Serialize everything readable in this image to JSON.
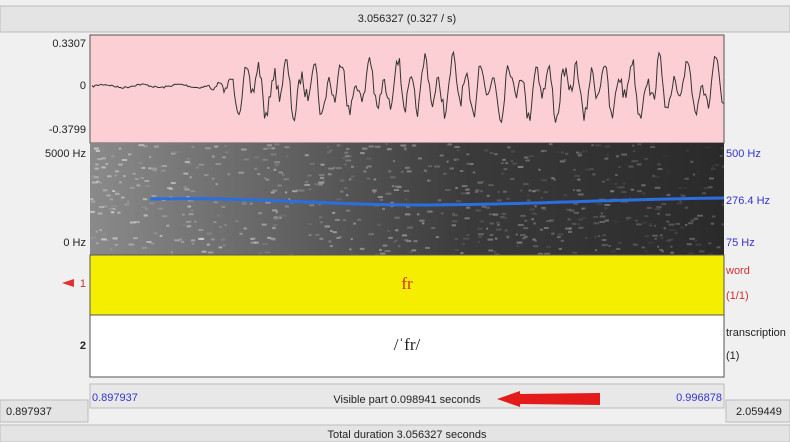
{
  "header": {
    "title": "3.056327 (0.327 / s)"
  },
  "waveform": {
    "max_label": "0.3307",
    "zero_label": "0",
    "min_label": "-0.3799"
  },
  "spectrogram": {
    "top_label": "5000 Hz",
    "bottom_label": "0 Hz",
    "pitch_top_label": "500 Hz",
    "pitch_value_label": "276.4 Hz",
    "pitch_bottom_label": "75 Hz"
  },
  "tiers": [
    {
      "number": "1",
      "text": "fr",
      "name": "word",
      "count": "(1/1)"
    },
    {
      "number": "2",
      "text": "/ˈfr/",
      "name": "transcription",
      "count": "(1)"
    }
  ],
  "footer": {
    "visible_start": "0.897937",
    "visible_part": "Visible part 0.098941 seconds",
    "visible_end": "0.996878",
    "window_start": "0.897937",
    "window_end": "2.059449",
    "total_duration": "Total duration 3.056327 seconds"
  }
}
